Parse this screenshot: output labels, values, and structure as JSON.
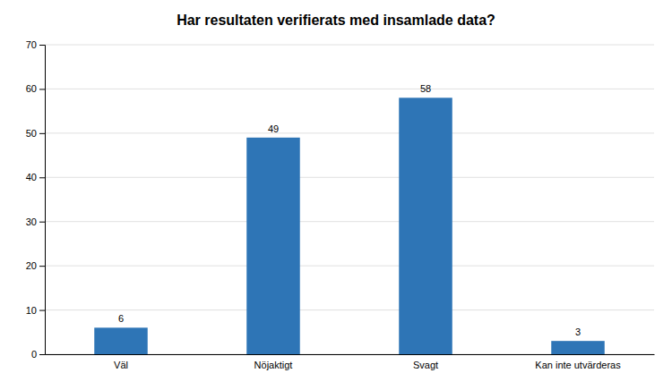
{
  "chart_data": {
    "type": "bar",
    "title": "Har resultaten verifierats med insamlade data?",
    "categories": [
      "Väl",
      "Nöjaktigt",
      "Svagt",
      "Kan inte utvärderas"
    ],
    "values": [
      6,
      49,
      58,
      3
    ],
    "color": "#2E75B6",
    "ylim": [
      0,
      70
    ],
    "yticks": [
      0,
      10,
      20,
      30,
      40,
      50,
      60,
      70
    ],
    "grid": true,
    "data_labels": true
  }
}
